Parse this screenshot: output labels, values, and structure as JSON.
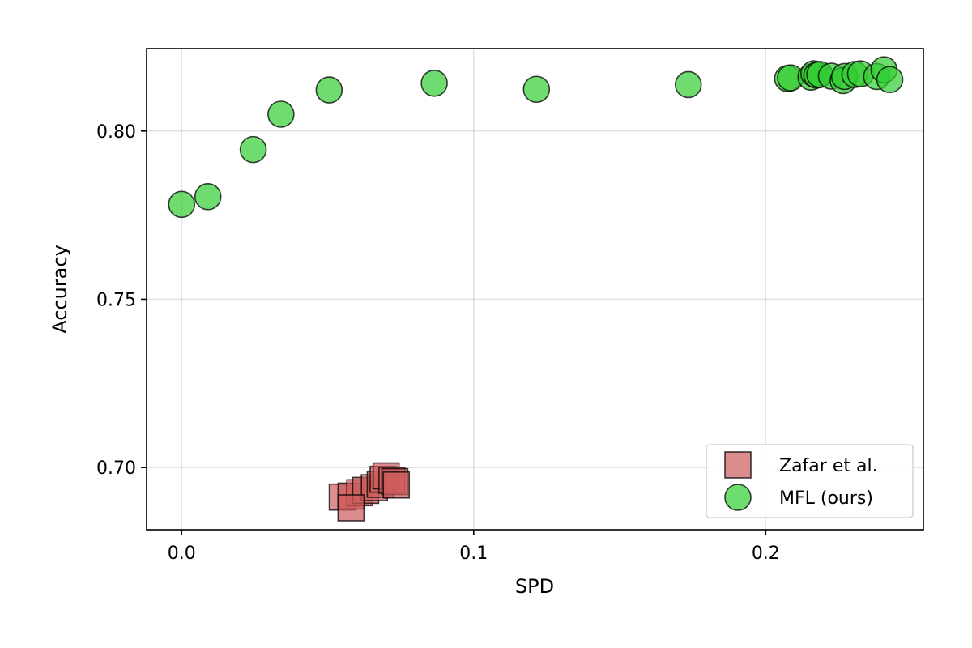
{
  "chart_data": {
    "type": "scatter",
    "xlabel": "SPD",
    "ylabel": "Accuracy",
    "xlim": [
      -0.012,
      0.254
    ],
    "ylim": [
      0.6815,
      0.8245
    ],
    "x_ticks": [
      0.0,
      0.1,
      0.2
    ],
    "x_tick_labels": [
      "0.0",
      "0.1",
      "0.2"
    ],
    "y_ticks": [
      0.7,
      0.75,
      0.8
    ],
    "y_tick_labels": [
      "0.70",
      "0.75",
      "0.80"
    ],
    "grid": true,
    "legend_position": "bottom-right",
    "series": [
      {
        "name": "Zafar et al.",
        "marker": "square",
        "color": "#cd5c5c",
        "edge_color": "#000000",
        "points": [
          {
            "x": 0.055,
            "y": 0.6912
          },
          {
            "x": 0.058,
            "y": 0.6915
          },
          {
            "x": 0.061,
            "y": 0.6925
          },
          {
            "x": 0.063,
            "y": 0.6932
          },
          {
            "x": 0.066,
            "y": 0.694
          },
          {
            "x": 0.068,
            "y": 0.695
          },
          {
            "x": 0.069,
            "y": 0.6965
          },
          {
            "x": 0.07,
            "y": 0.6975
          },
          {
            "x": 0.072,
            "y": 0.6962
          },
          {
            "x": 0.073,
            "y": 0.6958
          },
          {
            "x": 0.0735,
            "y": 0.6948
          },
          {
            "x": 0.058,
            "y": 0.688
          }
        ]
      },
      {
        "name": "MFL (ours)",
        "marker": "circle",
        "color": "#32cd32",
        "edge_color": "#000000",
        "points": [
          {
            "x": 0.0,
            "y": 0.7782
          },
          {
            "x": 0.009,
            "y": 0.7805
          },
          {
            "x": 0.0245,
            "y": 0.7945
          },
          {
            "x": 0.034,
            "y": 0.805
          },
          {
            "x": 0.0505,
            "y": 0.8122
          },
          {
            "x": 0.0865,
            "y": 0.8142
          },
          {
            "x": 0.1215,
            "y": 0.8124
          },
          {
            "x": 0.1735,
            "y": 0.8138
          },
          {
            "x": 0.2075,
            "y": 0.8156
          },
          {
            "x": 0.2085,
            "y": 0.8158
          },
          {
            "x": 0.2155,
            "y": 0.816
          },
          {
            "x": 0.2165,
            "y": 0.817
          },
          {
            "x": 0.2175,
            "y": 0.8166
          },
          {
            "x": 0.2185,
            "y": 0.8168
          },
          {
            "x": 0.2225,
            "y": 0.8163
          },
          {
            "x": 0.2265,
            "y": 0.815
          },
          {
            "x": 0.227,
            "y": 0.8162
          },
          {
            "x": 0.2305,
            "y": 0.8168
          },
          {
            "x": 0.2325,
            "y": 0.817
          },
          {
            "x": 0.238,
            "y": 0.8162
          },
          {
            "x": 0.2405,
            "y": 0.8182
          },
          {
            "x": 0.2425,
            "y": 0.8153
          }
        ]
      }
    ]
  }
}
